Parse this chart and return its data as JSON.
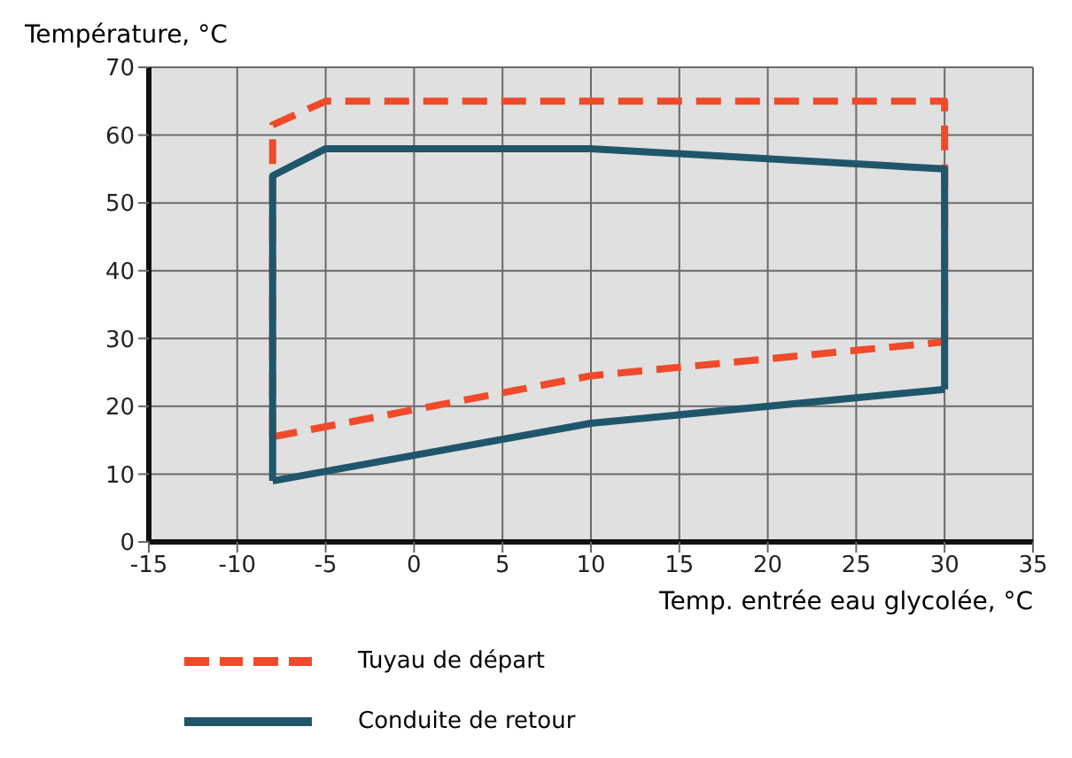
{
  "chart_data": {
    "type": "line",
    "ylabel": "Température, °C",
    "xlabel": "Temp. entrée eau glycolée, °C",
    "xlim": [
      -15,
      35
    ],
    "xticks": [
      -15,
      -10,
      -5,
      0,
      5,
      10,
      15,
      20,
      25,
      30,
      35
    ],
    "ylim": [
      0,
      70
    ],
    "yticks": [
      0,
      10,
      20,
      30,
      40,
      50,
      60,
      70
    ],
    "grid": true,
    "legend": "bottom left",
    "marker": "none",
    "series": [
      {
        "name": "Tuyau de départ",
        "color": "#f04a2a",
        "line_style": "dashed",
        "x": [
          -8,
          10,
          30
        ],
        "values": [
          15.5,
          24.5,
          29.5
        ]
      },
      {
        "color": "#f04a2a",
        "line_style": "dashed",
        "x": [
          -8,
          -8,
          -5,
          30,
          30
        ],
        "values": [
          15.5,
          61.5,
          65,
          65,
          29.5
        ]
      },
      {
        "name": "Conduite de retour",
        "color": "#1f566b",
        "line_style": "solid",
        "x": [
          -8,
          10,
          30
        ],
        "values": [
          9,
          17.5,
          22.5
        ]
      },
      {
        "color": "#1f566b",
        "line_style": "solid",
        "x": [
          -8,
          -8,
          -5,
          10,
          30,
          30
        ],
        "values": [
          9,
          54,
          58,
          58,
          55,
          22.5
        ]
      }
    ]
  }
}
